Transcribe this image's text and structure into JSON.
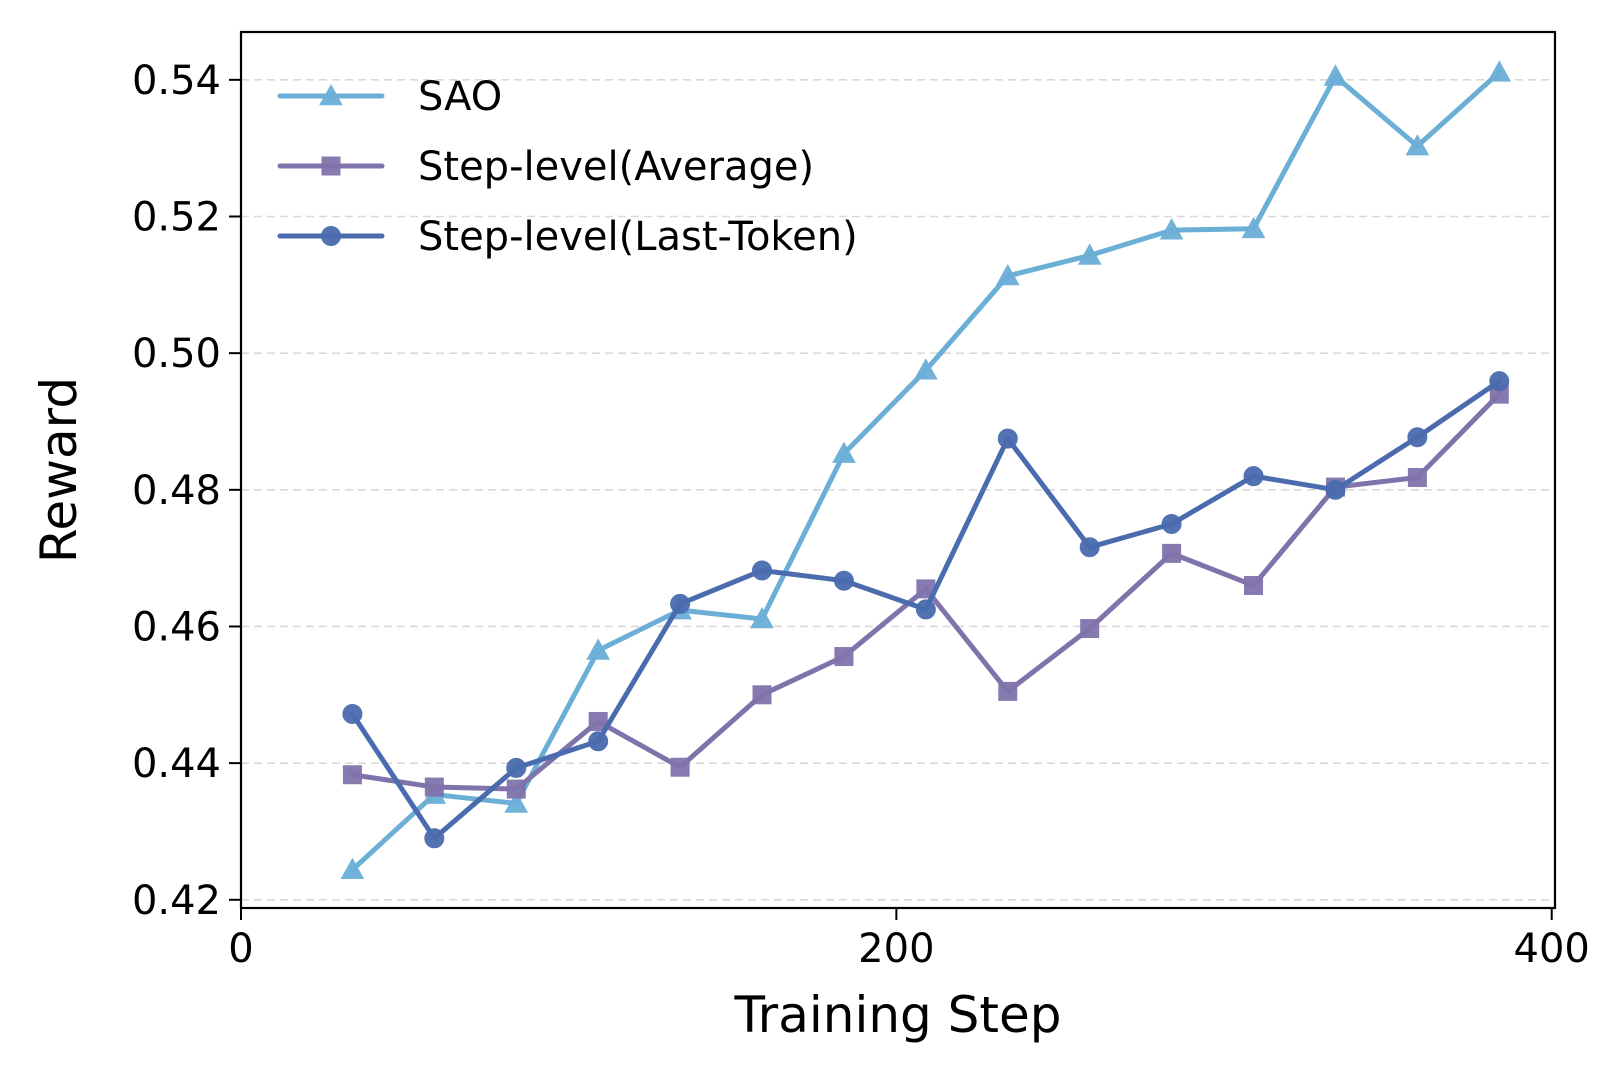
{
  "chart_data": {
    "type": "line",
    "xlabel": "Training Step",
    "ylabel": "Reward",
    "xlim": [
      0,
      401
    ],
    "ylim": [
      0.4188,
      0.547
    ],
    "xticks": [
      0,
      200,
      400
    ],
    "yticks": [
      0.42,
      0.44,
      0.46,
      0.48,
      0.5,
      0.52,
      0.54
    ],
    "xtick_labels": [
      "0",
      "200",
      "400"
    ],
    "ytick_labels": [
      "0.42",
      "0.44",
      "0.46",
      "0.48",
      "0.50",
      "0.52",
      "0.54"
    ],
    "grid": "horizontal dashed",
    "legend_position": "top-left",
    "x": [
      34,
      59,
      84,
      109,
      134,
      159,
      184,
      209,
      234,
      259,
      284,
      309,
      334,
      359,
      384
    ],
    "series": [
      {
        "name": "SAO",
        "color": "#6BAED6",
        "marker": "triangle",
        "values": [
          0.4244,
          0.4354,
          0.4341,
          0.4565,
          0.4624,
          0.4611,
          0.4853,
          0.4975,
          0.5113,
          0.5143,
          0.518,
          0.5182,
          0.5405,
          0.5303,
          0.5411
        ]
      },
      {
        "name": "Step-level(Average)",
        "color": "#8073AC",
        "marker": "square",
        "values": [
          0.4383,
          0.4365,
          0.4362,
          0.4461,
          0.4394,
          0.45,
          0.4556,
          0.4655,
          0.4505,
          0.4597,
          0.4707,
          0.466,
          0.4804,
          0.4818,
          0.494
        ]
      },
      {
        "name": "Step-level(Last-Token)",
        "color": "#4A6BAE",
        "marker": "circle",
        "values": [
          0.4472,
          0.429,
          0.4393,
          0.4432,
          0.4633,
          0.4682,
          0.4667,
          0.4625,
          0.4875,
          0.4716,
          0.475,
          0.482,
          0.48,
          0.4877,
          0.4959
        ]
      }
    ]
  }
}
